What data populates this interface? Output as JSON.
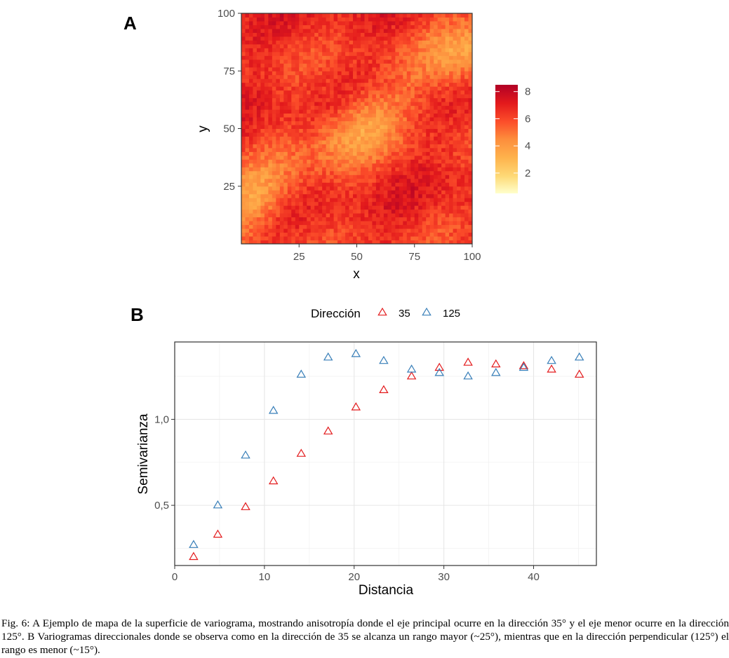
{
  "panels": {
    "a_label": "A",
    "b_label": "B"
  },
  "caption": "Fig. 6: A Ejemplo de mapa de la superficie de variograma, mostrando anisotropía donde el eje principal ocurre en la dirección 35° y el eje menor ocurre en la dirección 125°. B Variogramas direccionales donde se observa como en la dirección de 35 se alcanza un rango mayor (~25°), mientras que en la dirección perpendicular (125°) el rango es menor (~15°).",
  "chart_data": [
    {
      "type": "heatmap",
      "title": "",
      "xlabel": "x",
      "ylabel": "y",
      "xlim": [
        0,
        100
      ],
      "ylim": [
        0,
        100
      ],
      "x_ticks": [
        "25",
        "50",
        "75",
        "100"
      ],
      "y_ticks": [
        "25",
        "50",
        "75",
        "100"
      ],
      "colorbar": {
        "ticks": [
          "2",
          "4",
          "6",
          "8"
        ],
        "range": [
          0.5,
          8.5
        ],
        "colors": [
          "#ffffcc",
          "#fed976",
          "#feb24c",
          "#fd8d3c",
          "#fc4e2a",
          "#e31a1c",
          "#b10026"
        ]
      },
      "description_grid_values": "variogram surface values 0.5–8.5, low values along a band in the 35° direction"
    },
    {
      "type": "scatter",
      "title": "",
      "xlabel": "Distancia",
      "ylabel": "Semivarianza",
      "xlim": [
        0,
        47
      ],
      "ylim": [
        0.15,
        1.45
      ],
      "x_ticks": [
        "0",
        "10",
        "20",
        "30",
        "40"
      ],
      "y_ticks": [
        "0,5",
        "1,0"
      ],
      "grid": true,
      "legend": {
        "title": "Dirección",
        "position": "top"
      },
      "series": [
        {
          "name": "35",
          "color": "#e31a1c",
          "marker": "triangle-open",
          "x": [
            2.1,
            4.8,
            7.9,
            11.0,
            14.1,
            17.1,
            20.2,
            23.3,
            26.4,
            29.5,
            32.7,
            35.8,
            38.9,
            42.0,
            45.1
          ],
          "y": [
            0.2,
            0.33,
            0.49,
            0.64,
            0.8,
            0.93,
            1.07,
            1.17,
            1.25,
            1.3,
            1.33,
            1.32,
            1.31,
            1.29,
            1.26
          ]
        },
        {
          "name": "125",
          "color": "#377eb8",
          "marker": "triangle-open",
          "x": [
            2.1,
            4.8,
            7.9,
            11.0,
            14.1,
            17.1,
            20.2,
            23.3,
            26.4,
            29.5,
            32.7,
            35.8,
            38.9,
            42.0,
            45.1
          ],
          "y": [
            0.27,
            0.5,
            0.79,
            1.05,
            1.26,
            1.36,
            1.38,
            1.34,
            1.29,
            1.27,
            1.25,
            1.27,
            1.3,
            1.34,
            1.36
          ]
        }
      ]
    }
  ]
}
